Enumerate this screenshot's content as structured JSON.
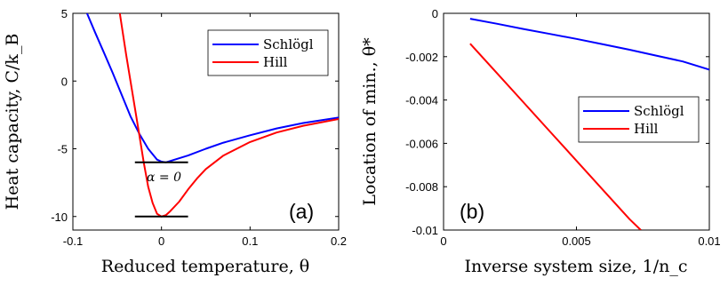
{
  "chart_data": [
    {
      "type": "line",
      "panel_label": "(a)",
      "xlabel": "Reduced temperature, θ",
      "ylabel": "Heat capacity, C/k_B",
      "xlim": [
        -0.1,
        0.2
      ],
      "ylim": [
        -11,
        5
      ],
      "xticks": [
        -0.1,
        0,
        0.1,
        0.2
      ],
      "xtick_labels": [
        "-0.1",
        "0",
        "0.1",
        "0.2"
      ],
      "yticks": [
        -10,
        -5,
        0,
        5
      ],
      "ytick_labels": [
        "-10",
        "-5",
        "0",
        "5"
      ],
      "legend_position": "top-right",
      "annotation": "α = 0",
      "reference_lines": [
        {
          "y": -6,
          "x": [
            -0.03,
            0.03
          ]
        },
        {
          "y": -10,
          "x": [
            -0.03,
            0.03
          ]
        }
      ],
      "series": [
        {
          "name": "Schlögl",
          "color": "#0000ff",
          "x": [
            -0.084,
            -0.075,
            -0.065,
            -0.055,
            -0.045,
            -0.035,
            -0.025,
            -0.015,
            -0.005,
            0.0,
            0.005,
            0.015,
            0.03,
            0.05,
            0.07,
            0.1,
            0.13,
            0.16,
            0.2
          ],
          "y": [
            5,
            3.6,
            2.1,
            0.6,
            -1.0,
            -2.6,
            -3.9,
            -5.0,
            -5.8,
            -5.95,
            -6.0,
            -5.8,
            -5.5,
            -5.0,
            -4.55,
            -4.0,
            -3.5,
            -3.1,
            -2.7
          ]
        },
        {
          "name": "Hill",
          "color": "#ff0000",
          "x": [
            -0.047,
            -0.04,
            -0.035,
            -0.03,
            -0.025,
            -0.02,
            -0.015,
            -0.01,
            -0.005,
            0.0,
            0.005,
            0.01,
            0.02,
            0.03,
            0.04,
            0.05,
            0.07,
            0.1,
            0.13,
            0.16,
            0.2
          ],
          "y": [
            5,
            2.0,
            0.0,
            -2.0,
            -4.0,
            -6.0,
            -7.8,
            -9.0,
            -9.8,
            -10.0,
            -9.9,
            -9.6,
            -8.9,
            -8.0,
            -7.2,
            -6.5,
            -5.5,
            -4.5,
            -3.8,
            -3.3,
            -2.8
          ]
        }
      ]
    },
    {
      "type": "line",
      "panel_label": "(b)",
      "xlabel": "Inverse system size, 1/n_c",
      "ylabel": "Location of min., θ*",
      "xlim": [
        0,
        0.01
      ],
      "ylim": [
        -0.01,
        0
      ],
      "xticks": [
        0,
        0.005,
        0.01
      ],
      "xtick_labels": [
        "0",
        "0.005",
        "0.01"
      ],
      "yticks": [
        0,
        -0.002,
        -0.004,
        -0.006,
        -0.008,
        -0.01
      ],
      "ytick_labels": [
        "0",
        "-0.002",
        "-0.004",
        "-0.006",
        "-0.008",
        "-0.01"
      ],
      "legend_position": "center-right",
      "series": [
        {
          "name": "Schlögl",
          "color": "#0000ff",
          "x": [
            0.001,
            0.002,
            0.003,
            0.004,
            0.005,
            0.006,
            0.007,
            0.008,
            0.009,
            0.01
          ],
          "y": [
            -0.00025,
            -0.00048,
            -0.00072,
            -0.00095,
            -0.00118,
            -0.00143,
            -0.00168,
            -0.00195,
            -0.00222,
            -0.0026
          ]
        },
        {
          "name": "Hill",
          "color": "#ff0000",
          "x": [
            0.001,
            0.002,
            0.003,
            0.004,
            0.005,
            0.006,
            0.007,
            0.00742
          ],
          "y": [
            -0.0014,
            -0.00275,
            -0.0041,
            -0.00545,
            -0.0068,
            -0.00815,
            -0.0095,
            -0.01
          ]
        }
      ]
    }
  ]
}
